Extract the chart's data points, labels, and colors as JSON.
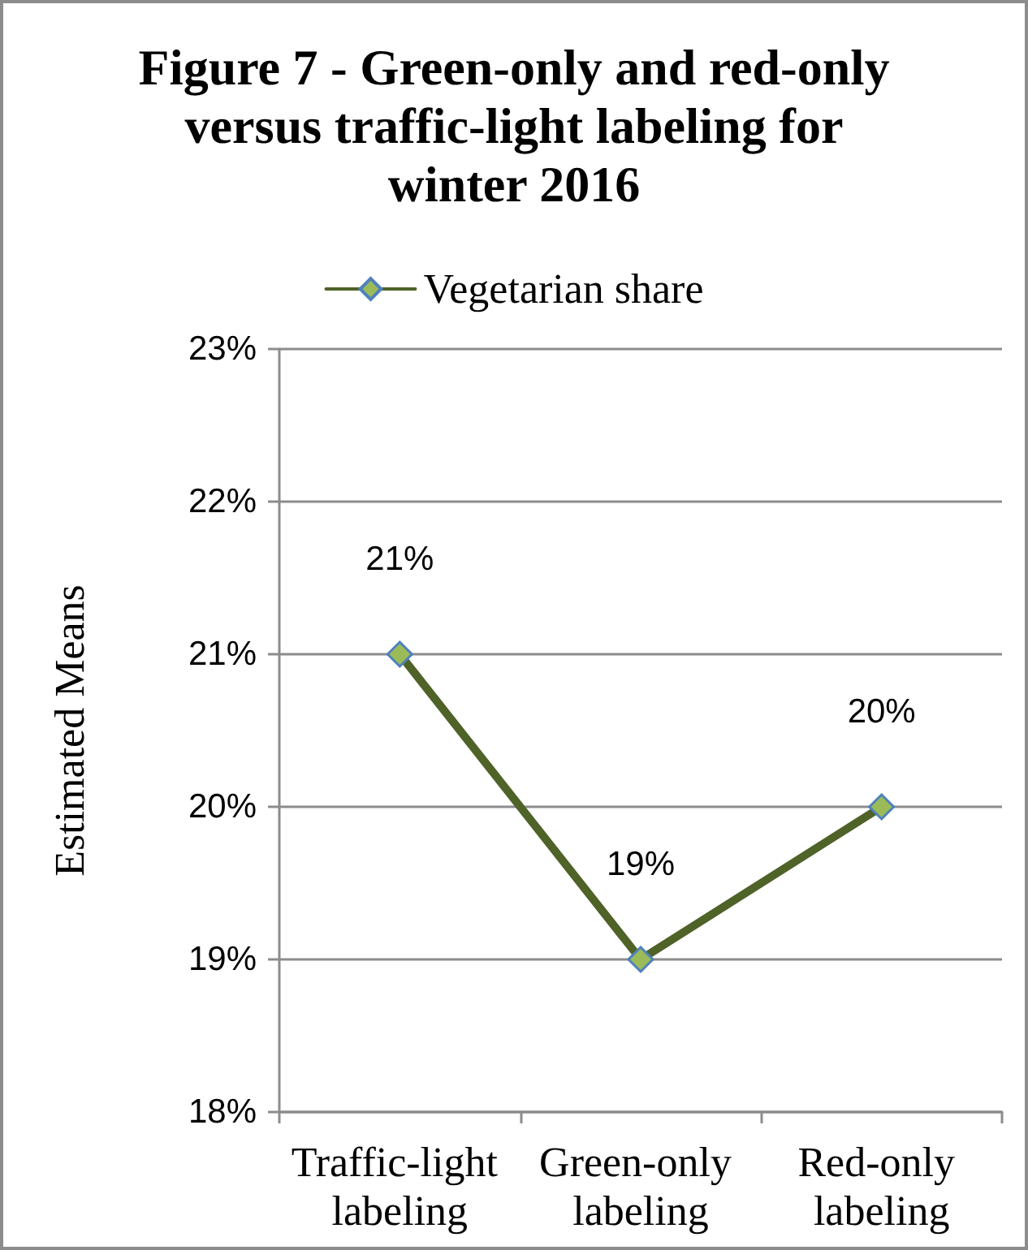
{
  "chart_data": {
    "type": "line",
    "title": "Figure 7 - Green-only and red-only versus traffic-light labeling for winter 2016",
    "ylabel": "Estimated Means",
    "categories": [
      "Traffic-light labeling",
      "Green-only labeling",
      "Red-only labeling"
    ],
    "series": [
      {
        "name": "Vegetarian share",
        "color": "#4f6228",
        "values": [
          21,
          19,
          20
        ],
        "value_labels": [
          "21%",
          "19%",
          "20%"
        ]
      }
    ],
    "ylim": [
      18,
      23
    ],
    "yticks": [
      {
        "value": 18,
        "label": "18%"
      },
      {
        "value": 19,
        "label": "19%"
      },
      {
        "value": 20,
        "label": "20%"
      },
      {
        "value": 21,
        "label": "21%"
      },
      {
        "value": 22,
        "label": "22%"
      },
      {
        "value": 23,
        "label": "23%"
      }
    ],
    "grid": "y",
    "legend": "top",
    "marker": "diamond",
    "line_style": "solid"
  }
}
